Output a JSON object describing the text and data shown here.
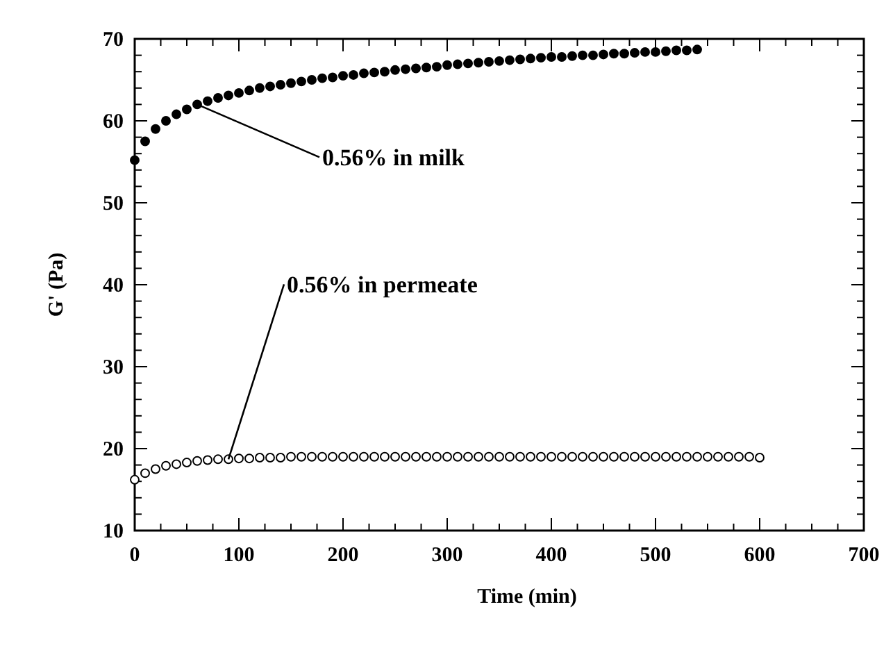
{
  "chart_data": {
    "type": "scatter",
    "xlabel": "Time (min)",
    "ylabel": "G' (Pa)",
    "xlim": [
      0,
      700
    ],
    "ylim": [
      10,
      70
    ],
    "xticks": [
      0,
      {
        "value": 25,
        "label": null
      },
      {
        "value": 50,
        "label": null
      },
      {
        "value": 75,
        "label": null
      },
      100,
      {
        "value": 125,
        "label": null
      },
      {
        "value": 150,
        "label": null
      },
      {
        "value": 175,
        "label": null
      },
      200,
      {
        "value": 225,
        "label": null
      },
      {
        "value": 250,
        "label": null
      },
      {
        "value": 275,
        "label": null
      },
      300,
      {
        "value": 325,
        "label": null
      },
      {
        "value": 350,
        "label": null
      },
      {
        "value": 375,
        "label": null
      },
      400,
      {
        "value": 425,
        "label": null
      },
      {
        "value": 450,
        "label": null
      },
      {
        "value": 475,
        "label": null
      },
      500,
      {
        "value": 525,
        "label": null
      },
      {
        "value": 550,
        "label": null
      },
      {
        "value": 575,
        "label": null
      },
      600,
      {
        "value": 625,
        "label": null
      },
      {
        "value": 650,
        "label": null
      },
      {
        "value": 675,
        "label": null
      },
      700
    ],
    "yticks": [
      10,
      {
        "value": 12,
        "label": null
      },
      {
        "value": 14,
        "label": null
      },
      {
        "value": 16,
        "label": null
      },
      {
        "value": 18,
        "label": null
      },
      20,
      {
        "value": 22,
        "label": null
      },
      {
        "value": 24,
        "label": null
      },
      {
        "value": 26,
        "label": null
      },
      {
        "value": 28,
        "label": null
      },
      30,
      {
        "value": 32,
        "label": null
      },
      {
        "value": 34,
        "label": null
      },
      {
        "value": 36,
        "label": null
      },
      {
        "value": 38,
        "label": null
      },
      40,
      {
        "value": 42,
        "label": null
      },
      {
        "value": 44,
        "label": null
      },
      {
        "value": 46,
        "label": null
      },
      {
        "value": 48,
        "label": null
      },
      50,
      {
        "value": 52,
        "label": null
      },
      {
        "value": 54,
        "label": null
      },
      {
        "value": 56,
        "label": null
      },
      {
        "value": 58,
        "label": null
      },
      60,
      {
        "value": 62,
        "label": null
      },
      {
        "value": 64,
        "label": null
      },
      {
        "value": 66,
        "label": null
      },
      {
        "value": 68,
        "label": null
      },
      70
    ],
    "marker": "circle",
    "grid": false,
    "series": [
      {
        "name": "0.56% in milk",
        "color": "#000000",
        "x": [
          0,
          10,
          20,
          30,
          40,
          50,
          60,
          70,
          80,
          90,
          100,
          110,
          120,
          130,
          140,
          150,
          160,
          170,
          180,
          190,
          200,
          210,
          220,
          230,
          240,
          250,
          260,
          270,
          280,
          290,
          300,
          310,
          320,
          330,
          340,
          350,
          360,
          370,
          380,
          390,
          400,
          410,
          420,
          430,
          440,
          450,
          460,
          470,
          480,
          490,
          500,
          510,
          520,
          530,
          540
        ],
        "values": [
          55.2,
          57.5,
          59.0,
          60.0,
          60.8,
          61.4,
          62.0,
          62.4,
          62.8,
          63.1,
          63.4,
          63.7,
          64.0,
          64.2,
          64.4,
          64.6,
          64.8,
          65.0,
          65.2,
          65.3,
          65.5,
          65.6,
          65.8,
          65.9,
          66.0,
          66.2,
          66.3,
          66.4,
          66.5,
          66.6,
          66.8,
          66.9,
          67.0,
          67.1,
          67.2,
          67.3,
          67.4,
          67.5,
          67.6,
          67.7,
          67.8,
          67.8,
          67.9,
          68.0,
          68.0,
          68.1,
          68.2,
          68.2,
          68.3,
          68.4,
          68.4,
          68.5,
          68.6,
          68.6,
          68.7
        ]
      },
      {
        "name": "0.56% in permeate",
        "color": "#000000",
        "x": [
          0,
          10,
          20,
          30,
          40,
          50,
          60,
          70,
          80,
          90,
          100,
          110,
          120,
          130,
          140,
          150,
          160,
          170,
          180,
          190,
          200,
          210,
          220,
          230,
          240,
          250,
          260,
          270,
          280,
          290,
          300,
          310,
          320,
          330,
          340,
          350,
          360,
          370,
          380,
          390,
          400,
          410,
          420,
          430,
          440,
          450,
          460,
          470,
          480,
          490,
          500,
          510,
          520,
          530,
          540,
          550,
          560,
          570,
          580,
          590,
          600
        ],
        "values": [
          16.2,
          17.0,
          17.5,
          17.9,
          18.1,
          18.3,
          18.5,
          18.6,
          18.7,
          18.7,
          18.8,
          18.8,
          18.9,
          18.9,
          18.9,
          19.0,
          19.0,
          19.0,
          19.0,
          19.0,
          19.0,
          19.0,
          19.0,
          19.0,
          19.0,
          19.0,
          19.0,
          19.0,
          19.0,
          19.0,
          19.0,
          19.0,
          19.0,
          19.0,
          19.0,
          19.0,
          19.0,
          19.0,
          19.0,
          19.0,
          19.0,
          19.0,
          19.0,
          19.0,
          19.0,
          19.0,
          19.0,
          19.0,
          19.0,
          19.0,
          19.0,
          19.0,
          19.0,
          19.0,
          19.0,
          19.0,
          19.0,
          19.0,
          19.0,
          19.0,
          18.9
        ]
      }
    ]
  }
}
